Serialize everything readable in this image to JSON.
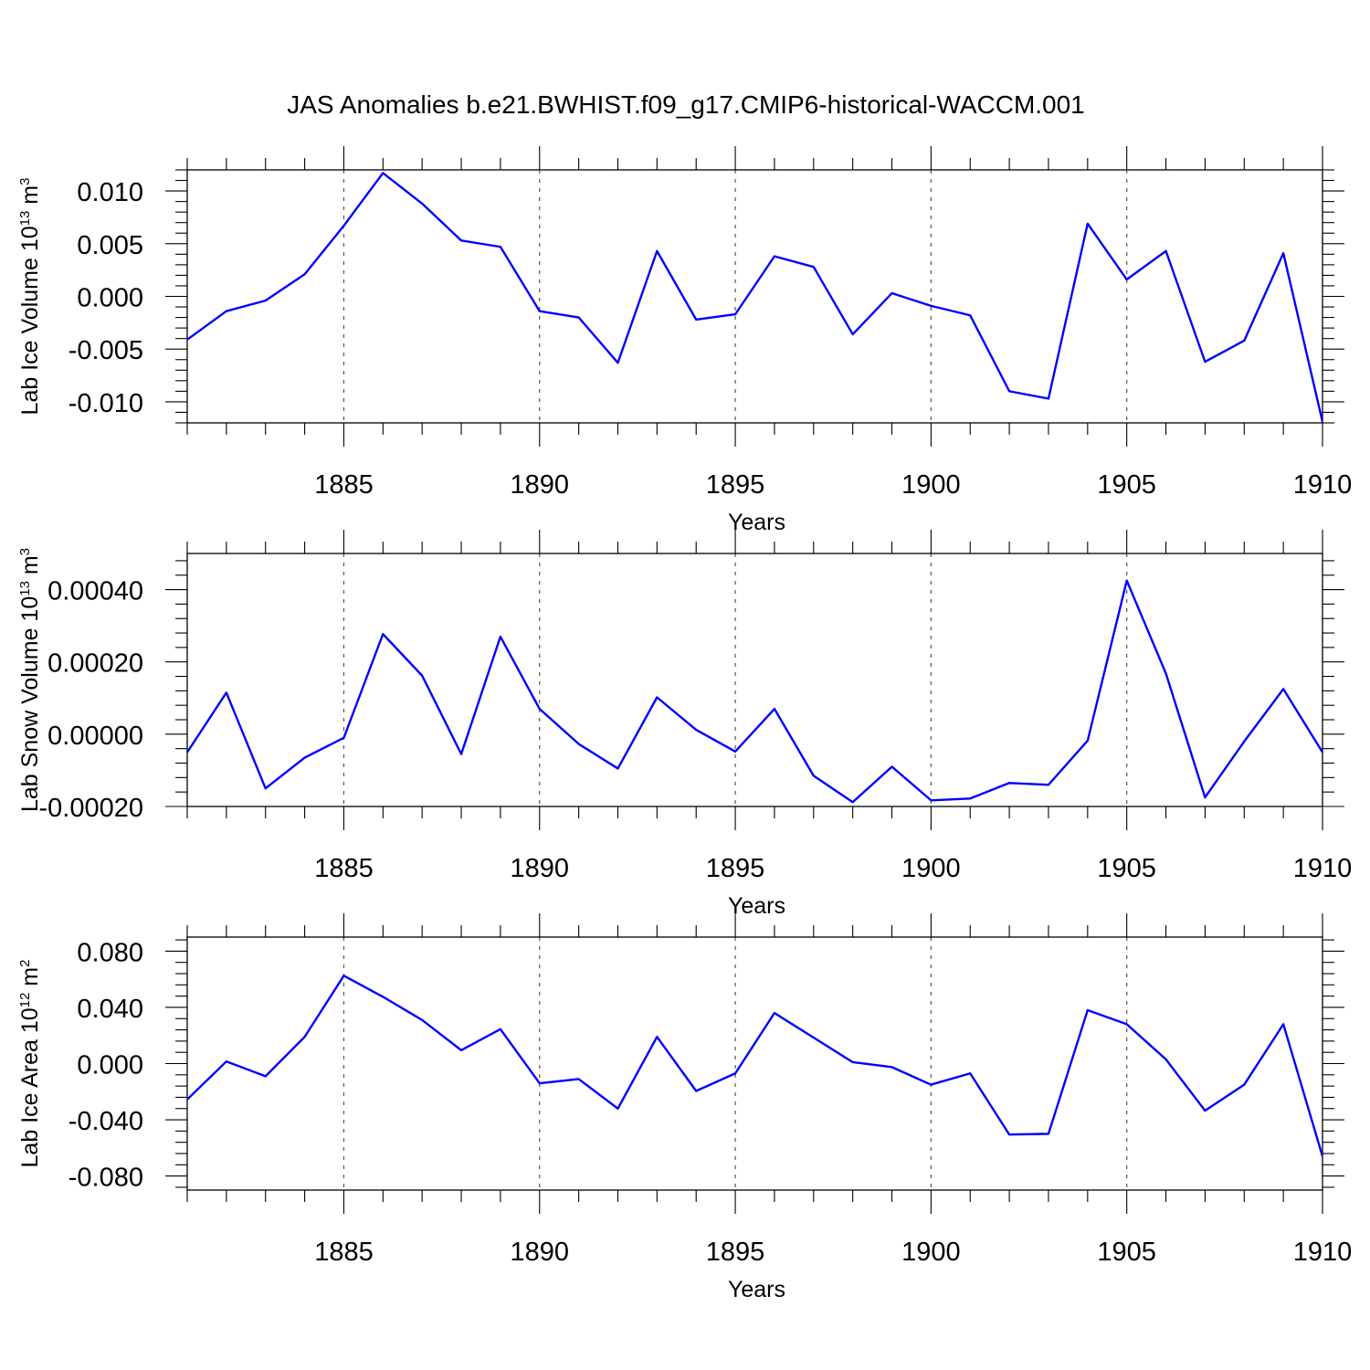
{
  "figure": {
    "title": "JAS Anomalies b.e21.BWHIST.f09_g17.CMIP6-historical-WACCM.001"
  },
  "chart_data": [
    {
      "type": "line",
      "ylabel": "Lab Ice Volume 10",
      "ylabel_sup": "13",
      "ylabel_unit": " m",
      "ylabel_unit_sup": "3",
      "xlabel": "Years",
      "xlim": [
        1881,
        1910
      ],
      "ylim": [
        -0.012,
        0.012
      ],
      "x_ticks": [
        1885,
        1890,
        1895,
        1900,
        1905,
        1910
      ],
      "y_ticks": [
        -0.01,
        -0.005,
        0.0,
        0.005,
        0.01
      ],
      "y_tick_labels": [
        "-0.010",
        "-0.005",
        "0.000",
        "0.005",
        "0.010"
      ],
      "grid_x": [
        1885,
        1890,
        1895,
        1900,
        1905
      ],
      "color": "#0000ff",
      "x": [
        1881,
        1882,
        1883,
        1884,
        1885,
        1886,
        1887,
        1888,
        1889,
        1890,
        1891,
        1892,
        1893,
        1894,
        1895,
        1896,
        1897,
        1898,
        1899,
        1900,
        1901,
        1902,
        1903,
        1904,
        1905,
        1906,
        1907,
        1908,
        1909,
        1910
      ],
      "values": [
        -0.0041,
        -0.0014,
        -0.0004,
        0.0021,
        0.0067,
        0.0117,
        0.0088,
        0.0053,
        0.0047,
        -0.0014,
        -0.002,
        -0.0063,
        0.0043,
        -0.0022,
        -0.0017,
        0.0038,
        0.0028,
        -0.0036,
        0.0003,
        -0.0009,
        -0.0018,
        -0.009,
        -0.0097,
        0.0069,
        0.0016,
        0.0043,
        -0.0062,
        -0.0042,
        0.0041,
        -0.0119
      ]
    },
    {
      "type": "line",
      "ylabel": "Lab Snow Volume 10",
      "ylabel_sup": "13",
      "ylabel_unit": " m",
      "ylabel_unit_sup": "3",
      "xlabel": "Years",
      "xlim": [
        1881,
        1910
      ],
      "ylim": [
        -0.0002,
        0.0005
      ],
      "x_ticks": [
        1885,
        1890,
        1895,
        1900,
        1905,
        1910
      ],
      "y_ticks": [
        -0.0002,
        0.0,
        0.0002,
        0.0004
      ],
      "y_tick_labels": [
        "-0.00020",
        "0.00000",
        "0.00020",
        "0.00040"
      ],
      "grid_x": [
        1885,
        1890,
        1895,
        1900,
        1905
      ],
      "color": "#0000ff",
      "x": [
        1881,
        1882,
        1883,
        1884,
        1885,
        1886,
        1887,
        1888,
        1889,
        1890,
        1891,
        1892,
        1893,
        1894,
        1895,
        1896,
        1897,
        1898,
        1899,
        1900,
        1901,
        1902,
        1903,
        1904,
        1905,
        1906,
        1907,
        1908,
        1909,
        1910
      ],
      "values": [
        -5e-05,
        0.000115,
        -0.00015,
        -6.5e-05,
        -1e-05,
        0.000277,
        0.000162,
        -5.5e-05,
        0.00027,
        7e-05,
        -2.7e-05,
        -9.5e-05,
        0.000102,
        1.2e-05,
        -4.8e-05,
        7e-05,
        -0.000115,
        -0.000188,
        -9e-05,
        -0.000183,
        -0.000178,
        -0.000135,
        -0.00014,
        -1.8e-05,
        0.000425,
        0.000168,
        -0.000175,
        -2e-05,
        0.000125,
        -5e-05
      ]
    },
    {
      "type": "line",
      "ylabel": "Lab Ice Area 10",
      "ylabel_sup": "12",
      "ylabel_unit": " m",
      "ylabel_unit_sup": "2",
      "xlabel": "Years",
      "xlim": [
        1881,
        1910
      ],
      "ylim": [
        -0.09,
        0.09
      ],
      "x_ticks": [
        1885,
        1890,
        1895,
        1900,
        1905,
        1910
      ],
      "y_ticks": [
        -0.08,
        -0.04,
        0.0,
        0.04,
        0.08
      ],
      "y_tick_labels": [
        "-0.080",
        "-0.040",
        "0.000",
        "0.040",
        "0.080"
      ],
      "grid_x": [
        1885,
        1890,
        1895,
        1900,
        1905
      ],
      "color": "#0000ff",
      "x": [
        1881,
        1882,
        1883,
        1884,
        1885,
        1886,
        1887,
        1888,
        1889,
        1890,
        1891,
        1892,
        1893,
        1894,
        1895,
        1896,
        1897,
        1898,
        1899,
        1900,
        1901,
        1902,
        1903,
        1904,
        1905,
        1906,
        1907,
        1908,
        1909,
        1910
      ],
      "values": [
        -0.0255,
        0.0015,
        -0.009,
        0.019,
        0.0625,
        0.0475,
        0.031,
        0.0095,
        0.0245,
        -0.014,
        -0.011,
        -0.032,
        0.019,
        -0.0195,
        -0.007,
        0.036,
        0.0185,
        0.001,
        -0.0025,
        -0.015,
        -0.007,
        -0.0505,
        -0.05,
        0.038,
        0.028,
        0.003,
        -0.0335,
        -0.015,
        0.028,
        -0.066
      ]
    }
  ]
}
